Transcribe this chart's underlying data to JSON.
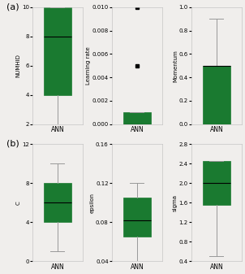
{
  "box_color": "#1a7a30",
  "whisker_color": "#999999",
  "background_color": "#f0eeec",
  "ann_row": {
    "numhid": {
      "ylabel": "NUMHID",
      "xlabel": "ANN",
      "ylim": [
        2,
        10
      ],
      "yticks": [
        2,
        4,
        6,
        8,
        10
      ],
      "q1": 4,
      "q3": 10,
      "median": 8,
      "whisker_low": 2,
      "whisker_high": 10,
      "fliers": []
    },
    "learning_rate": {
      "ylabel": "Learning rate",
      "xlabel": "ANN",
      "ylim": [
        0,
        0.01
      ],
      "yticks": [
        0,
        0.002,
        0.004,
        0.006,
        0.008,
        0.01
      ],
      "q1": 0.0,
      "q3": 0.001,
      "median": 0.0,
      "whisker_low": 0.0,
      "whisker_high": 0.001,
      "fliers": [
        0.005,
        0.01
      ]
    },
    "momentum": {
      "ylabel": "Momentum",
      "xlabel": "ANN",
      "ylim": [
        0,
        1
      ],
      "yticks": [
        0,
        0.2,
        0.4,
        0.6,
        0.8,
        1.0
      ],
      "q1": 0.0,
      "q3": 0.5,
      "median": 0.5,
      "whisker_low": 0.0,
      "whisker_high": 0.9,
      "fliers": []
    }
  },
  "svm_row": {
    "C": {
      "ylabel": "C",
      "xlabel": "ANN",
      "ylim": [
        0,
        12
      ],
      "yticks": [
        0,
        4,
        8,
        12
      ],
      "q1": 4,
      "q3": 8,
      "median": 6,
      "whisker_low": 1,
      "whisker_high": 10,
      "fliers": []
    },
    "epsilon": {
      "ylabel": "epsilon",
      "xlabel": "ANN",
      "ylim": [
        0.04,
        0.16
      ],
      "yticks": [
        0.04,
        0.08,
        0.12,
        0.16
      ],
      "q1": 0.065,
      "q3": 0.105,
      "median": 0.082,
      "whisker_low": 0.04,
      "whisker_high": 0.12,
      "fliers": []
    },
    "sigma": {
      "ylabel": "sigma",
      "xlabel": "ANN",
      "ylim": [
        0.4,
        2.8
      ],
      "yticks": [
        0.4,
        0.8,
        1.2,
        1.6,
        2.0,
        2.4,
        2.8
      ],
      "q1": 1.55,
      "q3": 2.45,
      "median": 2.0,
      "whisker_low": 0.5,
      "whisker_high": 2.45,
      "fliers": []
    }
  }
}
